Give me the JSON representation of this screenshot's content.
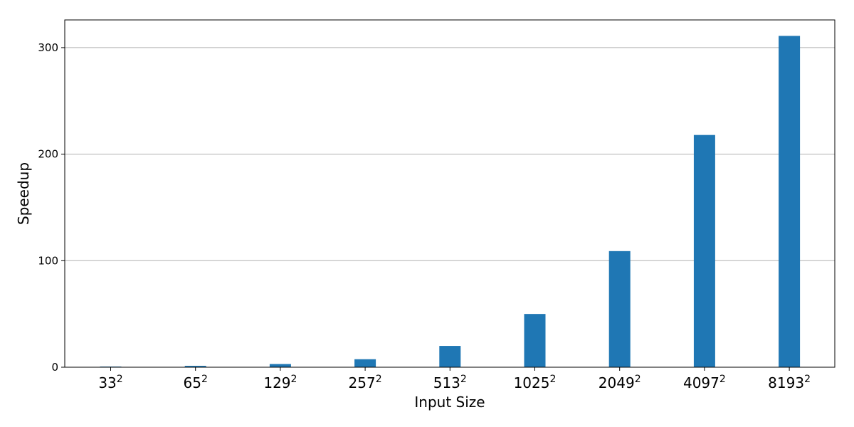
{
  "chart_data": {
    "type": "bar",
    "title": "",
    "xlabel": "Input Size",
    "ylabel": "Speedup",
    "categories": [
      {
        "base": "33",
        "exp": "2"
      },
      {
        "base": "65",
        "exp": "2"
      },
      {
        "base": "129",
        "exp": "2"
      },
      {
        "base": "257",
        "exp": "2"
      },
      {
        "base": "513",
        "exp": "2"
      },
      {
        "base": "1025",
        "exp": "2"
      },
      {
        "base": "2049",
        "exp": "2"
      },
      {
        "base": "4097",
        "exp": "2"
      },
      {
        "base": "8193",
        "exp": "2"
      }
    ],
    "values": [
      0.6,
      1.3,
      3,
      7.5,
      20,
      50,
      109,
      218,
      311
    ],
    "ylim": [
      0,
      326
    ],
    "yticks": [
      0,
      100,
      200,
      300
    ],
    "grid": "horizontal",
    "bar_color": "#1f77b4",
    "grid_color": "#b0b0b0"
  }
}
